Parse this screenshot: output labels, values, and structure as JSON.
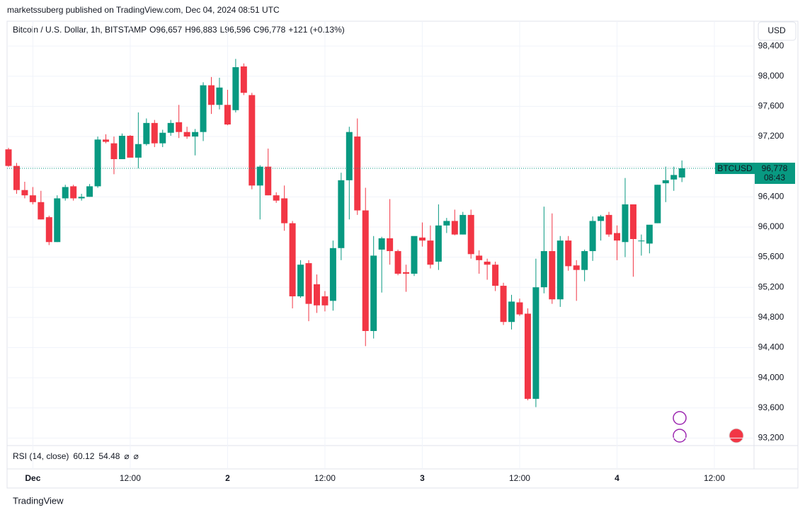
{
  "header": {
    "attribution": "marketssuberg published on TradingView.com, Dec 04, 2024 08:51 UTC",
    "symbol": "Bitcoin / U.S. Dollar, 1h, BITSTAMP",
    "ohlc": [
      {
        "key": "O",
        "value": "96,657"
      },
      {
        "key": "H",
        "value": "96,883"
      },
      {
        "key": "L",
        "value": "96,596"
      },
      {
        "key": "C",
        "value": "96,778"
      }
    ],
    "change": "+121 (+0.13%)",
    "currency": "USD"
  },
  "chart_data": {
    "type": "candlestick",
    "categories": [
      null,
      null,
      null,
      "Dec",
      null,
      null,
      null,
      null,
      null,
      null,
      null,
      null,
      null,
      null,
      null,
      "12:00",
      null,
      null,
      null,
      null,
      null,
      null,
      null,
      null,
      null,
      null,
      null,
      "2",
      null,
      null,
      null,
      null,
      null,
      null,
      null,
      null,
      null,
      null,
      null,
      "12:00",
      null,
      null,
      null,
      null,
      null,
      null,
      null,
      null,
      null,
      null,
      null,
      "3",
      null,
      null,
      null,
      null,
      null,
      null,
      null,
      null,
      null,
      null,
      null,
      "12:00",
      null,
      null,
      null,
      null,
      null,
      null,
      null,
      null,
      null,
      null,
      null,
      "4",
      null,
      null,
      null,
      null,
      null,
      null,
      null,
      null,
      null,
      null,
      null,
      "12:00",
      null,
      null,
      null,
      null
    ],
    "open": [
      97030,
      96810,
      96490,
      96420,
      96330,
      96130,
      95800,
      96380,
      96540,
      96380,
      96400,
      96540,
      97160,
      97110,
      96900,
      97210,
      96920,
      97100,
      97380,
      97110,
      97250,
      97390,
      97260,
      97200,
      97260,
      97880,
      97620,
      97620,
      97550,
      98130,
      97750,
      96550,
      96800,
      96420,
      96380,
      96050,
      95080,
      95520,
      95240,
      95080,
      95020,
      95720,
      96620,
      97200,
      96220,
      94620,
      95700,
      95850,
      95680,
      95400,
      95380,
      95860,
      95820,
      95540,
      96020,
      96080,
      95900,
      96160,
      95620,
      95540,
      95500,
      95220,
      94740,
      95000,
      94850,
      93720,
      95200,
      95680,
      95040,
      95820,
      95490,
      95430,
      95680,
      96080,
      96160,
      95920,
      95800,
      96300,
      95810,
      95780,
      96050,
      96580,
      96630,
      96657,
      null,
      null,
      null,
      null,
      null,
      null,
      null,
      null
    ],
    "high": [
      97050,
      96850,
      96600,
      96530,
      96480,
      96150,
      96420,
      96560,
      96560,
      96440,
      96570,
      97200,
      97230,
      97200,
      97240,
      97220,
      97520,
      97440,
      97420,
      97290,
      97420,
      97620,
      97330,
      97300,
      97920,
      97990,
      97980,
      97820,
      98230,
      98170,
      97780,
      96820,
      97040,
      96460,
      96550,
      96080,
      95560,
      95560,
      95370,
      95150,
      95820,
      96720,
      97330,
      97440,
      96520,
      95880,
      95870,
      96370,
      95700,
      95500,
      95870,
      96060,
      96020,
      96300,
      96120,
      96230,
      96200,
      96230,
      95690,
      95580,
      95540,
      95260,
      95100,
      95050,
      94920,
      95580,
      96270,
      96180,
      95880,
      95880,
      95560,
      95700,
      96140,
      96160,
      96200,
      96020,
      96650,
      96300,
      95900,
      96000,
      96560,
      96800,
      96800,
      96883,
      null,
      null,
      null,
      null,
      null,
      null,
      null,
      null
    ],
    "low": [
      96800,
      96440,
      96380,
      96300,
      96100,
      95760,
      95800,
      96350,
      96350,
      96350,
      96400,
      96520,
      97110,
      96700,
      96900,
      96930,
      96780,
      97080,
      97060,
      97060,
      97210,
      97180,
      97170,
      96950,
      97140,
      97500,
      97560,
      97350,
      97520,
      97750,
      96500,
      96100,
      96420,
      96320,
      95950,
      94920,
      95060,
      94750,
      94860,
      94880,
      94890,
      95560,
      96100,
      96160,
      94420,
      94520,
      95130,
      95500,
      95360,
      95140,
      95350,
      95740,
      95450,
      95430,
      95920,
      95890,
      95900,
      95580,
      95380,
      95300,
      95150,
      94700,
      94640,
      94820,
      93700,
      93610,
      95120,
      94980,
      94940,
      95420,
      95020,
      95280,
      95550,
      95820,
      95870,
      95560,
      95600,
      95340,
      95620,
      95650,
      96050,
      96330,
      96480,
      96596,
      null,
      null,
      null,
      null,
      null,
      null,
      null,
      null
    ],
    "close": [
      96810,
      96490,
      96420,
      96330,
      96100,
      95800,
      96380,
      96530,
      96380,
      96400,
      96540,
      97160,
      97130,
      96900,
      97210,
      96920,
      97100,
      97380,
      97110,
      97250,
      97380,
      97260,
      97200,
      97260,
      97880,
      97620,
      97850,
      97360,
      98120,
      97780,
      96550,
      96800,
      96420,
      96350,
      96050,
      95080,
      95500,
      94980,
      94960,
      94960,
      95720,
      96620,
      97260,
      96220,
      94620,
      95620,
      95850,
      95680,
      95380,
      95380,
      95880,
      95820,
      95500,
      96020,
      96080,
      95900,
      96160,
      95640,
      95560,
      95500,
      95220,
      94740,
      95010,
      94840,
      93720,
      95200,
      95680,
      95040,
      95820,
      95480,
      95430,
      95680,
      96080,
      96140,
      95900,
      95820,
      96300,
      95840,
      95820,
      96030,
      96560,
      96620,
      96690,
      96778,
      null,
      null,
      null,
      null,
      null,
      null,
      null,
      null
    ],
    "up_color": "#089981",
    "down_color": "#f23645",
    "grid": true,
    "ylim": [
      93100,
      98730
    ],
    "yticks": [
      {
        "value": 93200,
        "label": "93,200"
      },
      {
        "value": 93600,
        "label": "93,600"
      },
      {
        "value": 94000,
        "label": "94,000"
      },
      {
        "value": 94400,
        "label": "94,400"
      },
      {
        "value": 94800,
        "label": "94,800"
      },
      {
        "value": 95200,
        "label": "95,200"
      },
      {
        "value": 95600,
        "label": "95,600"
      },
      {
        "value": 96000,
        "label": "96,000"
      },
      {
        "value": 96400,
        "label": "96,400"
      },
      {
        "value": 96800,
        "label": "96,800"
      },
      {
        "value": 97200,
        "label": "97,200"
      },
      {
        "value": 97600,
        "label": "97,600"
      },
      {
        "value": 98000,
        "label": "98,000"
      },
      {
        "value": 98400,
        "label": "98,400"
      }
    ],
    "last_price": {
      "symbol": "BTCUSD",
      "label": "96,778",
      "countdown": "08:43"
    }
  },
  "rsi": {
    "label": "RSI (14, close)",
    "values": [
      "60.12",
      "54.48"
    ],
    "extra": [
      "⌀",
      "⌀"
    ]
  },
  "footer": {
    "brand": "TradingView"
  }
}
